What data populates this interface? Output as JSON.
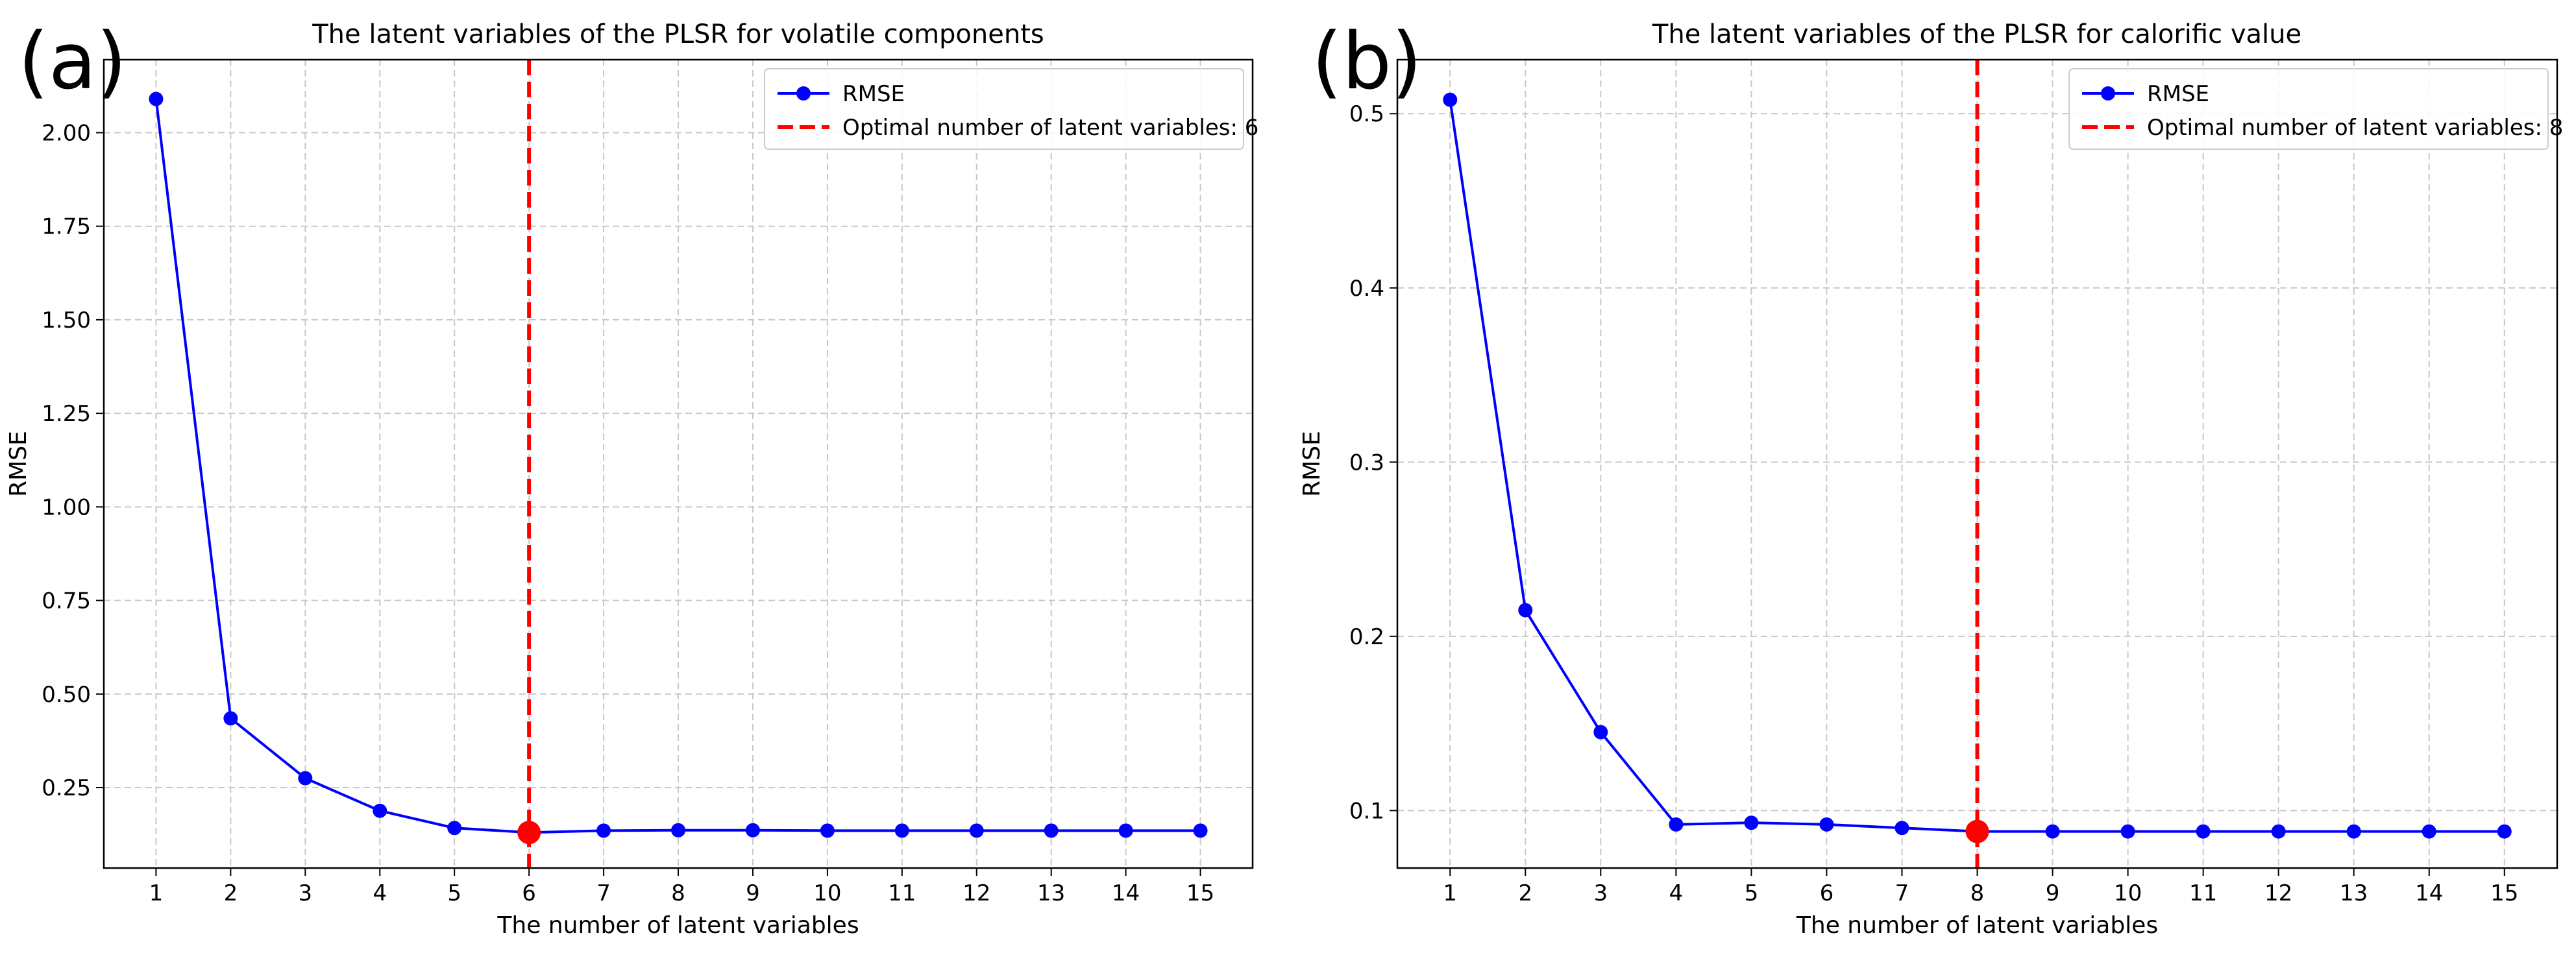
{
  "chart_data": [
    {
      "type": "line",
      "panel_label": "(a)",
      "title": "The latent variables of the PLSR for volatile components",
      "xlabel": "The number of latent variables",
      "ylabel": "RMSE",
      "x": [
        1,
        2,
        3,
        4,
        5,
        6,
        7,
        8,
        9,
        10,
        11,
        12,
        13,
        14,
        15
      ],
      "xlim": [
        0.3,
        15.7
      ],
      "ylim": [
        0.035,
        2.195
      ],
      "yticks": [
        0.25,
        0.5,
        0.75,
        1.0,
        1.25,
        1.5,
        1.75,
        2.0
      ],
      "ytick_labels": [
        "0.25",
        "0.50",
        "0.75",
        "1.00",
        "1.25",
        "1.50",
        "1.75",
        "2.00"
      ],
      "series": [
        {
          "name": "RMSE",
          "color": "#0000ff",
          "values": [
            2.09,
            0.435,
            0.275,
            0.188,
            0.142,
            0.13,
            0.135,
            0.136,
            0.136,
            0.135,
            0.135,
            0.135,
            0.135,
            0.135,
            0.135
          ]
        }
      ],
      "optimal": {
        "x": 6,
        "y": 0.13,
        "label": "Optimal number of latent variables: 6",
        "color": "#ff0000"
      },
      "grid": true,
      "legend_position": "top-right"
    },
    {
      "type": "line",
      "panel_label": "(b)",
      "title": "The latent variables of the PLSR for calorific value",
      "xlabel": "The number of latent variables",
      "ylabel": "RMSE",
      "x": [
        1,
        2,
        3,
        4,
        5,
        6,
        7,
        8,
        9,
        10,
        11,
        12,
        13,
        14,
        15
      ],
      "xlim": [
        0.3,
        15.7
      ],
      "ylim": [
        0.067,
        0.531
      ],
      "yticks": [
        0.1,
        0.2,
        0.3,
        0.4,
        0.5
      ],
      "ytick_labels": [
        "0.1",
        "0.2",
        "0.3",
        "0.4",
        "0.5"
      ],
      "series": [
        {
          "name": "RMSE",
          "color": "#0000ff",
          "values": [
            0.508,
            0.215,
            0.145,
            0.092,
            0.093,
            0.092,
            0.09,
            0.088,
            0.088,
            0.088,
            0.088,
            0.088,
            0.088,
            0.088,
            0.088
          ]
        }
      ],
      "optimal": {
        "x": 8,
        "y": 0.088,
        "label": "Optimal number of latent variables: 8",
        "color": "#ff0000"
      },
      "grid": true,
      "legend_position": "top-right"
    }
  ]
}
